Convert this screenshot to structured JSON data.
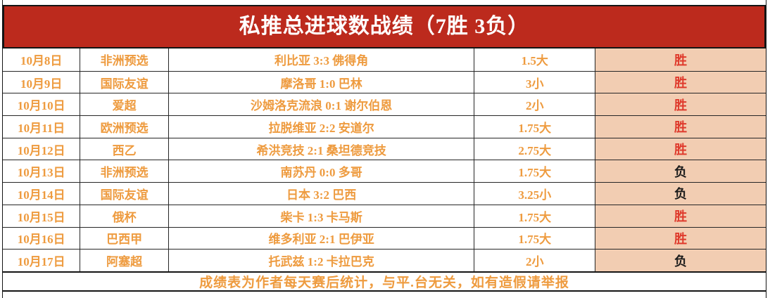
{
  "header": {
    "title": "私推总进球数战绩（7胜 3负）",
    "wins": 7,
    "losses": 3
  },
  "table": {
    "rows": [
      {
        "date": "10月8日",
        "league": "非洲预选",
        "match": "利比亚 3:3 佛得角",
        "line": "1.5大",
        "result": "胜",
        "result_type": "win"
      },
      {
        "date": "10月9日",
        "league": "国际友谊",
        "match": "摩洛哥 1:0 巴林",
        "line": "3小",
        "result": "胜",
        "result_type": "win"
      },
      {
        "date": "10月10日",
        "league": "爱超",
        "match": "沙姆洛克流浪 0:1 谢尔伯恩",
        "line": "2小",
        "result": "胜",
        "result_type": "win"
      },
      {
        "date": "10月11日",
        "league": "欧洲预选",
        "match": "拉脱维亚 2:2 安道尔",
        "line": "1.75大",
        "result": "胜",
        "result_type": "win"
      },
      {
        "date": "10月12日",
        "league": "西乙",
        "match": "希洪竞技 2:1 桑坦德竞技",
        "line": "2.75大",
        "result": "胜",
        "result_type": "win"
      },
      {
        "date": "10月13日",
        "league": "非洲预选",
        "match": "南苏丹 0:0 多哥",
        "line": "1.75大",
        "result": "负",
        "result_type": "loss"
      },
      {
        "date": "10月14日",
        "league": "国际友谊",
        "match": "日本 3:2 巴西",
        "line": "3.25小",
        "result": "负",
        "result_type": "loss"
      },
      {
        "date": "10月15日",
        "league": "俄杯",
        "match": "柴卡 1:3 卡马斯",
        "line": "1.75大",
        "result": "胜",
        "result_type": "win"
      },
      {
        "date": "10月16日",
        "league": "巴西甲",
        "match": "维多利亚 2:1 巴伊亚",
        "line": "1.75大",
        "result": "胜",
        "result_type": "win"
      },
      {
        "date": "10月17日",
        "league": "阿塞超",
        "match": "托武兹 1:2 卡拉巴克",
        "line": "2小",
        "result": "负",
        "result_type": "loss"
      }
    ]
  },
  "footer": {
    "note": "成绩表为作者每天赛后统计，与平.台无关，如有造假请举报"
  },
  "colors": {
    "banner-red": "#bc2a1d",
    "text-orange": "#ee9b3f",
    "result-bg": "#f2cdb2",
    "win-red": "#df3a2c",
    "loss-black": "#1c1c1c"
  }
}
